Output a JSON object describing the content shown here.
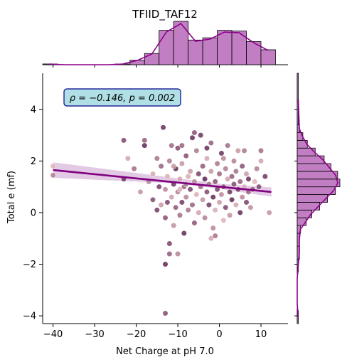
{
  "chart_data": {
    "type": "scatter",
    "title": "TFIID_TAF12",
    "xlabel": "Net Charge at pH 7.0",
    "ylabel": "Total e (mf)",
    "xlim": [
      -42.5,
      16.5
    ],
    "ylim": [
      -4.3,
      5.4
    ],
    "xticks": [
      -40,
      -30,
      -20,
      -10,
      0,
      10
    ],
    "xtick_labels": [
      "−40",
      "−30",
      "−20",
      "−10",
      "0",
      "10"
    ],
    "yticks": [
      -4,
      -2,
      0,
      2,
      4
    ],
    "ytick_labels": [
      "−4",
      "−2",
      "0",
      "2",
      "4"
    ],
    "annotation": "ρ = −0.146, p = 0.002",
    "grid": false,
    "colors": {
      "regression": "#800080",
      "ci_band": "#d8b8dc",
      "hist_fill": "#c27ec2",
      "hist_edge": "#000000",
      "kde": "#8b008b",
      "annotation_bg": "#b0e0e6",
      "annotation_edge": "#00008b",
      "point_light": "#e0b3b8",
      "point_dark": "#5a2050"
    },
    "regression": {
      "x": [
        -40,
        12.5
      ],
      "y": [
        1.65,
        0.8
      ]
    },
    "points": [
      {
        "x": -40,
        "y": 1.8
      },
      {
        "x": -40,
        "y": 1.45
      },
      {
        "x": -23,
        "y": 2.8
      },
      {
        "x": -22,
        "y": 2.1
      },
      {
        "x": -20.5,
        "y": 1.7
      },
      {
        "x": -23,
        "y": 1.3
      },
      {
        "x": -19,
        "y": 0.8
      },
      {
        "x": -18,
        "y": 2.8
      },
      {
        "x": -18,
        "y": 2.6
      },
      {
        "x": -17,
        "y": 1.2
      },
      {
        "x": -16,
        "y": 0.5
      },
      {
        "x": -16,
        "y": 1.5
      },
      {
        "x": -15,
        "y": 2.1
      },
      {
        "x": -14.5,
        "y": 1.0
      },
      {
        "x": -14,
        "y": 0.3
      },
      {
        "x": -14,
        "y": 1.8
      },
      {
        "x": -13.5,
        "y": 3.3
      },
      {
        "x": -13,
        "y": 0.9
      },
      {
        "x": -13,
        "y": -0.2
      },
      {
        "x": -12.5,
        "y": 1.4
      },
      {
        "x": -12,
        "y": 2.0
      },
      {
        "x": -12,
        "y": -1.2
      },
      {
        "x": -11.5,
        "y": 0.6
      },
      {
        "x": -11.5,
        "y": 2.6
      },
      {
        "x": -11,
        "y": 1.1
      },
      {
        "x": -11,
        "y": -0.5
      },
      {
        "x": -10.5,
        "y": 0.2
      },
      {
        "x": -10.5,
        "y": 1.7
      },
      {
        "x": -10,
        "y": 0.8
      },
      {
        "x": -10,
        "y": 2.5
      },
      {
        "x": -9.5,
        "y": 1.3
      },
      {
        "x": -9.5,
        "y": -0.1
      },
      {
        "x": -9,
        "y": 0.4
      },
      {
        "x": -9,
        "y": 1.9
      },
      {
        "x": -8.5,
        "y": 1.0
      },
      {
        "x": -8.5,
        "y": -0.8
      },
      {
        "x": -8,
        "y": 0.6
      },
      {
        "x": -8,
        "y": 2.2
      },
      {
        "x": -7.5,
        "y": 1.4
      },
      {
        "x": -7.5,
        "y": 0.1
      },
      {
        "x": -7,
        "y": 0.9
      },
      {
        "x": -7,
        "y": 1.6
      },
      {
        "x": -6.5,
        "y": 0.3
      },
      {
        "x": -6.5,
        "y": 2.9
      },
      {
        "x": -6,
        "y": 1.2
      },
      {
        "x": -6,
        "y": -0.4
      },
      {
        "x": -5.5,
        "y": 0.7
      },
      {
        "x": -5.5,
        "y": 2.4
      },
      {
        "x": -5,
        "y": 1.5
      },
      {
        "x": -5,
        "y": 0.0
      },
      {
        "x": -4.5,
        "y": 1.0
      },
      {
        "x": -4.5,
        "y": 3.0
      },
      {
        "x": -4,
        "y": 0.5
      },
      {
        "x": -4,
        "y": 1.8
      },
      {
        "x": -3.5,
        "y": 1.3
      },
      {
        "x": -3.5,
        "y": -0.2
      },
      {
        "x": -3,
        "y": 0.8
      },
      {
        "x": -3,
        "y": 2.1
      },
      {
        "x": -2.5,
        "y": 1.1
      },
      {
        "x": -2.5,
        "y": 0.3
      },
      {
        "x": -2,
        "y": 1.6
      },
      {
        "x": -2,
        "y": 2.7
      },
      {
        "x": -1.5,
        "y": 0.6
      },
      {
        "x": -1.5,
        "y": -0.6
      },
      {
        "x": -1,
        "y": 1.2
      },
      {
        "x": -1,
        "y": 0.1
      },
      {
        "x": -0.5,
        "y": 1.9
      },
      {
        "x": -0.5,
        "y": 0.9
      },
      {
        "x": 0,
        "y": 0.4
      },
      {
        "x": 0,
        "y": 1.5
      },
      {
        "x": 0.5,
        "y": 2.3
      },
      {
        "x": 0.5,
        "y": 0.7
      },
      {
        "x": 1,
        "y": 1.0
      },
      {
        "x": 1,
        "y": -0.3
      },
      {
        "x": 1.5,
        "y": 1.7
      },
      {
        "x": 1.5,
        "y": 0.2
      },
      {
        "x": 2,
        "y": 1.3
      },
      {
        "x": 2,
        "y": 2.6
      },
      {
        "x": 2.5,
        "y": 0.8
      },
      {
        "x": 2.5,
        "y": -0.1
      },
      {
        "x": 3,
        "y": 1.4
      },
      {
        "x": 3,
        "y": 0.5
      },
      {
        "x": 3.5,
        "y": 2.0
      },
      {
        "x": 3.5,
        "y": 1.1
      },
      {
        "x": 4,
        "y": 0.3
      },
      {
        "x": 4,
        "y": 1.6
      },
      {
        "x": 4.5,
        "y": 0.9
      },
      {
        "x": 4.5,
        "y": 2.4
      },
      {
        "x": 5,
        "y": 1.2
      },
      {
        "x": 5,
        "y": 0.0
      },
      {
        "x": 5.5,
        "y": 0.6
      },
      {
        "x": 5.5,
        "y": 1.8
      },
      {
        "x": 6,
        "y": 1.0
      },
      {
        "x": 6,
        "y": 2.4
      },
      {
        "x": 6.5,
        "y": 0.4
      },
      {
        "x": 6.5,
        "y": 1.5
      },
      {
        "x": 7,
        "y": 0.8
      },
      {
        "x": 7,
        "y": 1.3
      },
      {
        "x": 7.5,
        "y": 0.2
      },
      {
        "x": 8,
        "y": 0.9
      },
      {
        "x": 8.5,
        "y": 1.2
      },
      {
        "x": 9,
        "y": 1.7
      },
      {
        "x": 9.5,
        "y": 1.0
      },
      {
        "x": 10,
        "y": 2.0
      },
      {
        "x": 10,
        "y": 2.4
      },
      {
        "x": 11,
        "y": 1.4
      },
      {
        "x": 12,
        "y": 0.0
      },
      {
        "x": -12,
        "y": -1.6
      },
      {
        "x": -13,
        "y": -2.0
      },
      {
        "x": -10,
        "y": -1.6
      },
      {
        "x": -13,
        "y": -3.9
      },
      {
        "x": -2,
        "y": -1.0
      },
      {
        "x": -1,
        "y": -0.9
      },
      {
        "x": -15,
        "y": 0.1
      },
      {
        "x": -11,
        "y": 1.8
      },
      {
        "x": -9,
        "y": 2.6
      },
      {
        "x": -3,
        "y": 2.5
      },
      {
        "x": 1,
        "y": 2.1
      },
      {
        "x": -6,
        "y": 3.1
      },
      {
        "x": -9.5,
        "y": 0.9
      },
      {
        "x": -8,
        "y": 1.1
      },
      {
        "x": -12.5,
        "y": 0.4
      }
    ],
    "x_hist": {
      "bins": [
        -42.5,
        -39,
        -35.5,
        -32,
        -28.5,
        -25,
        -21.5,
        -18,
        -14.5,
        -11,
        -7.5,
        -4,
        -0.5,
        3,
        6.5,
        10,
        13.5
      ],
      "counts": [
        1,
        0,
        0,
        0,
        0,
        1,
        6,
        15,
        46,
        58,
        33,
        36,
        46,
        45,
        31,
        20,
        7
      ]
    },
    "y_hist": {
      "bins": [
        -4.3,
        -3.8,
        -3.3,
        -2.8,
        -2.3,
        -1.8,
        -1.3,
        -0.8,
        -0.5,
        -0.2,
        0.1,
        0.4,
        0.7,
        1.0,
        1.3,
        1.6,
        1.9,
        2.2,
        2.5,
        2.8,
        3.1,
        3.4,
        5.4
      ],
      "counts": [
        1,
        0,
        0,
        0,
        1,
        2,
        2,
        3,
        8,
        13,
        20,
        27,
        34,
        38,
        36,
        30,
        24,
        16,
        9,
        5,
        2,
        1
      ]
    }
  }
}
